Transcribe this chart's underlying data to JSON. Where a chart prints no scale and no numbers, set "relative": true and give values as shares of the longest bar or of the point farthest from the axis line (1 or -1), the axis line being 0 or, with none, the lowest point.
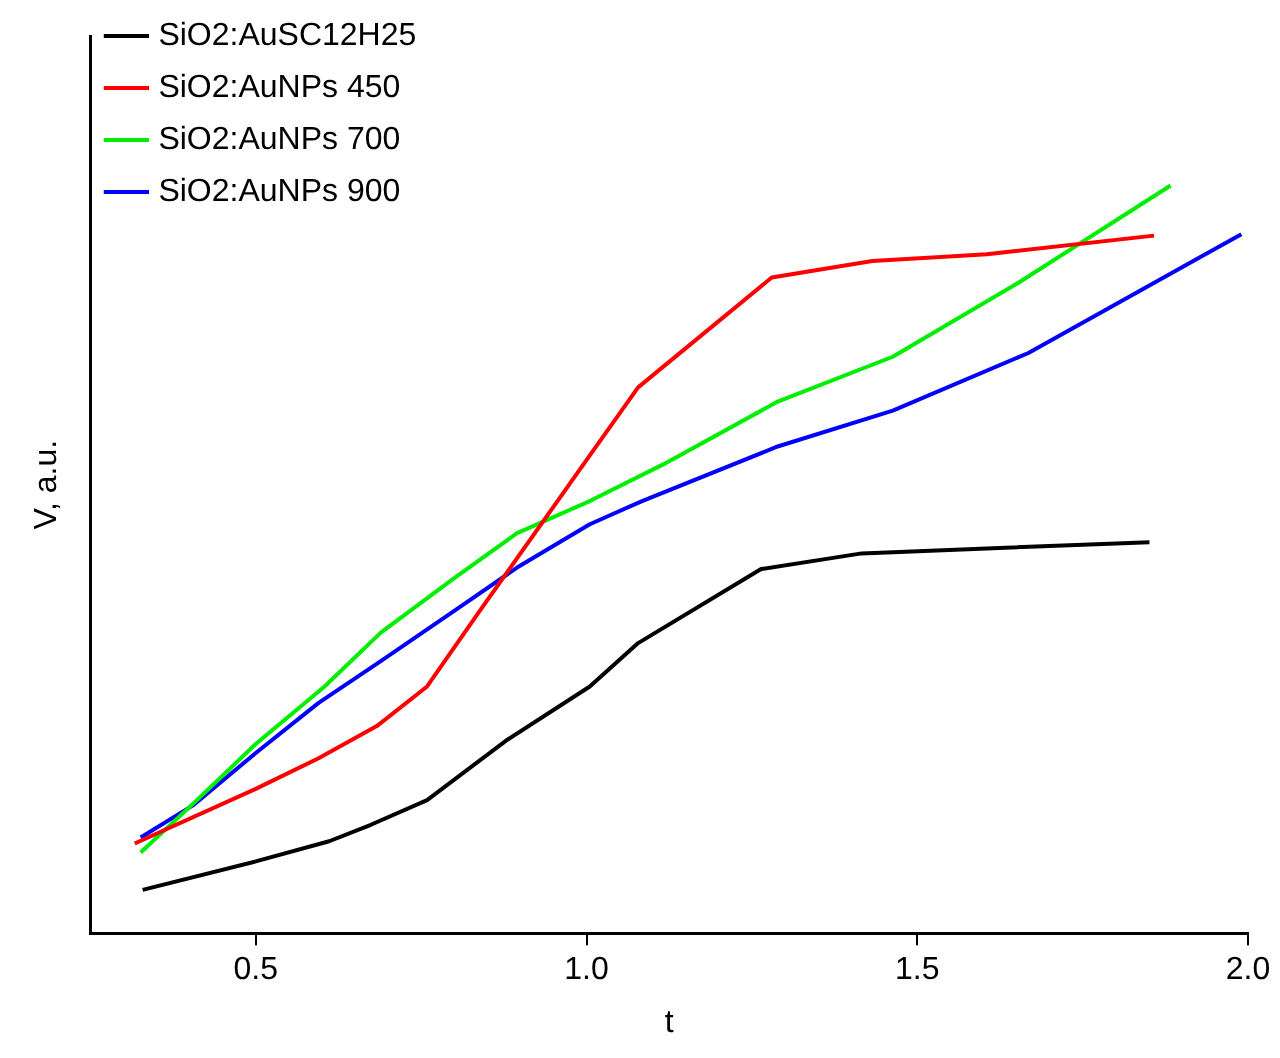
{
  "chart_data": {
    "type": "line",
    "xlabel": "t",
    "ylabel": "V, a.u.",
    "relative": true,
    "xlim": [
      0.25,
      2.0
    ],
    "xticks": [
      0.5,
      {
        "value": 1,
        "label": "1.0"
      },
      1.5,
      {
        "value": 2,
        "label": "2.0"
      }
    ],
    "legend": "top left",
    "marker": "none",
    "line_style": "solid",
    "grid": false,
    "series": [
      {
        "name": "SiO2:AuSC12H25",
        "color": "#000000",
        "x": [
          0.329,
          0.5,
          0.611,
          0.674,
          0.759,
          0.879,
          1.005,
          1.078,
          1.264,
          1.416,
          1.851
        ],
        "values": [
          0.058,
          0.096,
          0.123,
          0.145,
          0.178,
          0.258,
          0.33,
          0.388,
          0.487,
          0.508,
          0.523
        ]
      },
      {
        "name": "SiO2:AuNPs 450",
        "color": "#ff0000",
        "x": [
          0.317,
          0.5,
          0.595,
          0.683,
          0.759,
          0.841,
          1.005,
          1.078,
          1.28,
          1.432,
          1.605,
          1.858
        ],
        "values": [
          0.12,
          0.193,
          0.234,
          0.277,
          0.33,
          0.434,
          0.639,
          0.73,
          0.877,
          0.899,
          0.908,
          0.933
        ]
      },
      {
        "name": "SiO2:AuNPs 700",
        "color": "#00ee00",
        "x": [
          0.326,
          0.405,
          0.5,
          0.604,
          0.689,
          0.8,
          0.895,
          1.005,
          1.116,
          1.289,
          1.463,
          1.653,
          1.883
        ],
        "values": [
          0.108,
          0.173,
          0.253,
          0.33,
          0.402,
          0.475,
          0.535,
          0.578,
          0.627,
          0.711,
          0.771,
          0.87,
          1
        ]
      },
      {
        "name": "SiO2:AuNPs 900",
        "color": "#0000ff",
        "x": [
          0.326,
          0.405,
          0.5,
          0.595,
          0.689,
          0.8,
          0.895,
          1.005,
          1.084,
          1.289,
          1.463,
          1.668,
          1.99
        ],
        "values": [
          0.128,
          0.171,
          0.241,
          0.308,
          0.364,
          0.431,
          0.489,
          0.547,
          0.578,
          0.651,
          0.699,
          0.776,
          0.935
        ]
      }
    ]
  }
}
